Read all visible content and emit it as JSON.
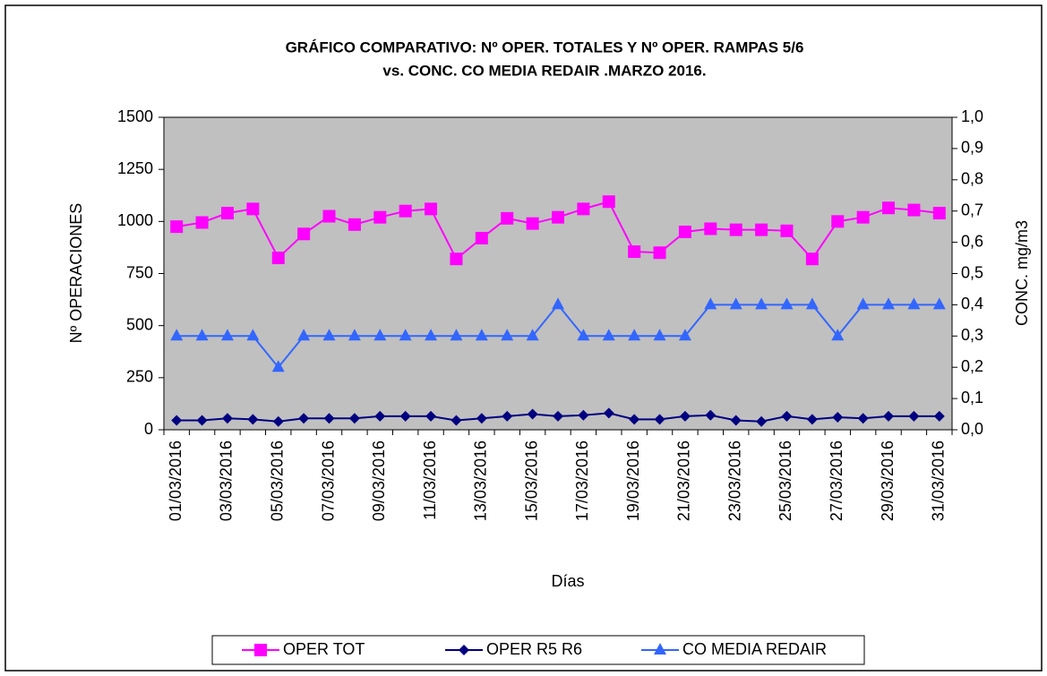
{
  "chart_data": {
    "type": "line",
    "title": [
      "GRÁFICO COMPARATIVO:  Nº OPER. TOTALES Y Nº OPER. RAMPAS 5/6",
      "vs. CONC.  CO MEDIA REDAIR .MARZO 2016."
    ],
    "xlabel": "Días",
    "ylabel": "Nº OPERACIONES",
    "y2label": "CONC.  mg/m3",
    "categories": [
      "01/03/2016",
      null,
      "03/03/2016",
      null,
      "05/03/2016",
      null,
      "07/03/2016",
      null,
      "09/03/2016",
      null,
      "11/03/2016",
      null,
      "13/03/2016",
      null,
      "15/03/2016",
      null,
      "17/03/2016",
      null,
      "19/03/2016",
      null,
      "21/03/2016",
      null,
      "23/03/2016",
      null,
      "25/03/2016",
      null,
      "27/03/2016",
      null,
      "29/03/2016",
      null,
      "31/03/2016"
    ],
    "ylim": [
      0,
      1500
    ],
    "yticks": [
      0,
      250,
      500,
      750,
      1000,
      1250,
      1500
    ],
    "y2lim": [
      0,
      1
    ],
    "y2ticks": [
      {
        "value": 0,
        "label": "0,0"
      },
      {
        "value": 0.1,
        "label": "0,1"
      },
      {
        "value": 0.2,
        "label": "0,2"
      },
      {
        "value": 0.3,
        "label": "0,3"
      },
      {
        "value": 0.4,
        "label": "0,4"
      },
      {
        "value": 0.5,
        "label": "0,5"
      },
      {
        "value": 0.6,
        "label": "0,6"
      },
      {
        "value": 0.7,
        "label": "0,7"
      },
      {
        "value": 0.8,
        "label": "0,8"
      },
      {
        "value": 0.9,
        "label": "0,9"
      },
      {
        "value": 1,
        "label": "1,0"
      }
    ],
    "grid": false,
    "legend": "bottom",
    "background": "#c0c0c0",
    "series": [
      {
        "name": "OPER TOT",
        "color": "#ff00ff",
        "marker": "square",
        "values": [
          975,
          995,
          1040,
          1060,
          825,
          940,
          1025,
          985,
          1020,
          1050,
          1060,
          820,
          920,
          1015,
          990,
          1020,
          1060,
          1095,
          855,
          850,
          950,
          965,
          960,
          960,
          955,
          820,
          1000,
          1020,
          1065,
          1055,
          1040
        ]
      },
      {
        "name": "OPER R5 R6",
        "color": "#000080",
        "marker": "diamond",
        "values": [
          45,
          45,
          55,
          50,
          40,
          55,
          55,
          55,
          65,
          65,
          65,
          45,
          55,
          65,
          75,
          65,
          70,
          80,
          50,
          50,
          65,
          70,
          45,
          40,
          65,
          50,
          60,
          55,
          65,
          65,
          65
        ]
      },
      {
        "name": "CO MEDIA  REDAIR",
        "color": "#3366ff",
        "marker": "triangle",
        "axis": "y2",
        "values": [
          0.3,
          0.3,
          0.3,
          0.3,
          0.2,
          0.3,
          0.3,
          0.3,
          0.3,
          0.3,
          0.3,
          0.3,
          0.3,
          0.3,
          0.3,
          0.4,
          0.3,
          0.3,
          0.3,
          0.3,
          0.3,
          0.4,
          0.4,
          0.4,
          0.4,
          0.4,
          0.3,
          0.4,
          0.4,
          0.4,
          0.4
        ]
      }
    ]
  }
}
